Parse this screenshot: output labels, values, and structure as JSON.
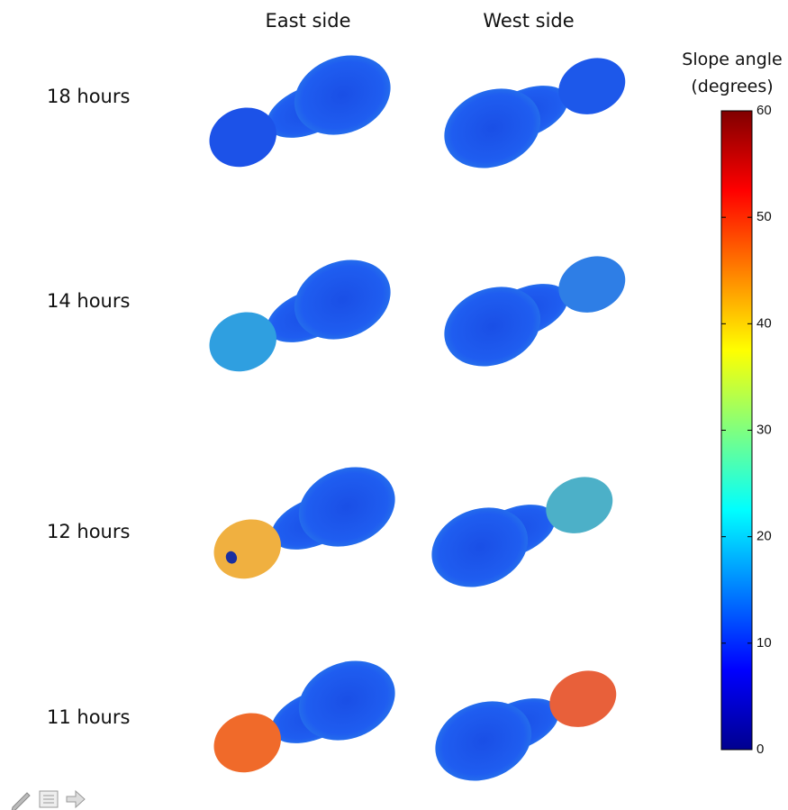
{
  "column_labels": [
    "East side",
    "West side"
  ],
  "row_labels": [
    "18 hours",
    "14 hours",
    "12 hours",
    "11 hours"
  ],
  "colorbar": {
    "title": [
      "Slope angle",
      "(degrees)"
    ],
    "lim": [
      0,
      60
    ],
    "ticks": [
      0,
      10,
      20,
      30,
      40,
      50,
      60
    ]
  }
}
